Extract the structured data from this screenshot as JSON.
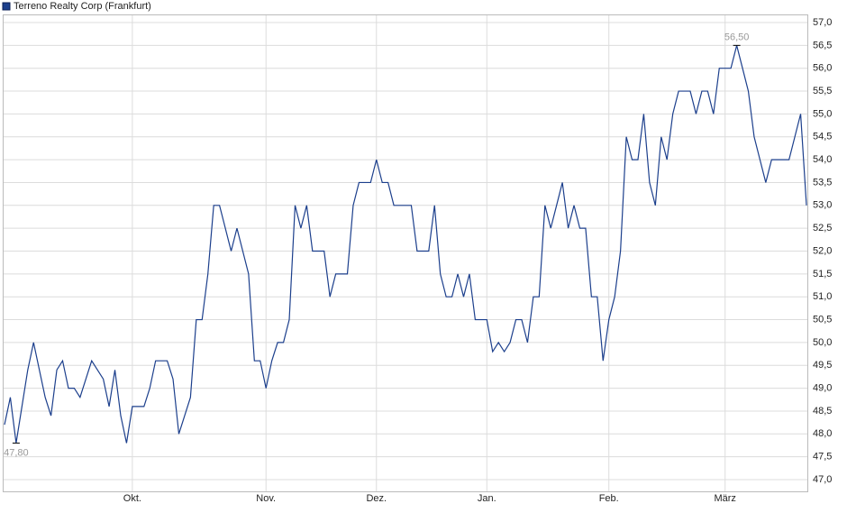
{
  "chart_data": {
    "type": "line",
    "series": [
      {
        "name": "Terreno Realty Corp (Frankfurt)",
        "color": "#1c3f8c",
        "values": [
          48.2,
          48.8,
          47.8,
          48.6,
          49.4,
          50.0,
          49.4,
          48.8,
          48.4,
          49.4,
          49.6,
          49.0,
          49.0,
          48.8,
          49.2,
          49.6,
          49.4,
          49.2,
          48.6,
          49.4,
          48.4,
          47.8,
          48.6,
          48.6,
          48.6,
          49.0,
          49.6,
          49.6,
          49.6,
          49.2,
          48.0,
          48.4,
          48.8,
          50.5,
          50.5,
          51.5,
          53.0,
          53.0,
          52.5,
          52.0,
          52.5,
          52.0,
          51.5,
          49.6,
          49.6,
          49.0,
          49.6,
          50.0,
          50.0,
          50.5,
          53.0,
          52.5,
          53.0,
          52.0,
          52.0,
          52.0,
          51.0,
          51.5,
          51.5,
          51.5,
          53.0,
          53.5,
          53.5,
          53.5,
          54.0,
          53.5,
          53.5,
          53.0,
          53.0,
          53.0,
          53.0,
          52.0,
          52.0,
          52.0,
          53.0,
          51.5,
          51.0,
          51.0,
          51.5,
          51.0,
          51.5,
          50.5,
          50.5,
          50.5,
          49.8,
          50.0,
          49.8,
          50.0,
          50.5,
          50.5,
          50.0,
          51.0,
          51.0,
          53.0,
          52.5,
          53.0,
          53.5,
          52.5,
          53.0,
          52.5,
          52.5,
          51.0,
          51.0,
          49.6,
          50.5,
          51.0,
          52.0,
          54.5,
          54.0,
          54.0,
          55.0,
          53.5,
          53.0,
          54.5,
          54.0,
          55.0,
          55.5,
          55.5,
          55.5,
          55.0,
          55.5,
          55.5,
          55.0,
          56.0,
          56.0,
          56.0,
          56.5,
          56.0,
          55.5,
          54.5,
          54.0,
          53.5,
          54.0,
          54.0,
          54.0,
          54.0,
          54.5,
          55.0,
          53.0
        ]
      }
    ],
    "categories": [
      null,
      null,
      null,
      null,
      null,
      null,
      null,
      null,
      null,
      null,
      null,
      null,
      null,
      null,
      null,
      null,
      null,
      null,
      null,
      null,
      null,
      null,
      "Okt.",
      null,
      null,
      null,
      null,
      null,
      null,
      null,
      null,
      null,
      null,
      null,
      null,
      null,
      null,
      null,
      null,
      null,
      null,
      null,
      null,
      null,
      null,
      "Nov.",
      null,
      null,
      null,
      null,
      null,
      null,
      null,
      null,
      null,
      null,
      null,
      null,
      null,
      null,
      null,
      null,
      null,
      null,
      "Dez.",
      null,
      null,
      null,
      null,
      null,
      null,
      null,
      null,
      null,
      null,
      null,
      null,
      null,
      null,
      null,
      null,
      null,
      null,
      "Jan.",
      null,
      null,
      null,
      null,
      null,
      null,
      null,
      null,
      null,
      null,
      null,
      null,
      null,
      null,
      null,
      null,
      null,
      null,
      null,
      null,
      "Feb.",
      null,
      null,
      null,
      null,
      null,
      null,
      null,
      null,
      null,
      null,
      null,
      null,
      null,
      null,
      null,
      null,
      null,
      null,
      null,
      "März",
      null,
      null,
      null,
      null,
      null,
      null,
      null,
      null,
      null,
      null,
      null,
      null,
      null,
      null
    ],
    "ylim": [
      47.0,
      57.0
    ],
    "yticks": [
      {
        "value": 47.0,
        "label": "47,0"
      },
      {
        "value": 47.5,
        "label": "47,5"
      },
      {
        "value": 48.0,
        "label": "48,0"
      },
      {
        "value": 48.5,
        "label": "48,5"
      },
      {
        "value": 49.0,
        "label": "49,0"
      },
      {
        "value": 49.5,
        "label": "49,5"
      },
      {
        "value": 50.0,
        "label": "50,0"
      },
      {
        "value": 50.5,
        "label": "50,5"
      },
      {
        "value": 51.0,
        "label": "51,0"
      },
      {
        "value": 51.5,
        "label": "51,5"
      },
      {
        "value": 52.0,
        "label": "52,0"
      },
      {
        "value": 52.5,
        "label": "52,5"
      },
      {
        "value": 53.0,
        "label": "53,0"
      },
      {
        "value": 53.5,
        "label": "53,5"
      },
      {
        "value": 54.0,
        "label": "54,0"
      },
      {
        "value": 54.5,
        "label": "54,5"
      },
      {
        "value": 55.0,
        "label": "55,0"
      },
      {
        "value": 55.5,
        "label": "55,5"
      },
      {
        "value": 56.0,
        "label": "56,0"
      },
      {
        "value": 56.5,
        "label": "56,5"
      },
      {
        "value": 57.0,
        "label": "57,0"
      }
    ],
    "annotations": {
      "high": "56,50",
      "low": "47,80"
    },
    "grid": true
  }
}
